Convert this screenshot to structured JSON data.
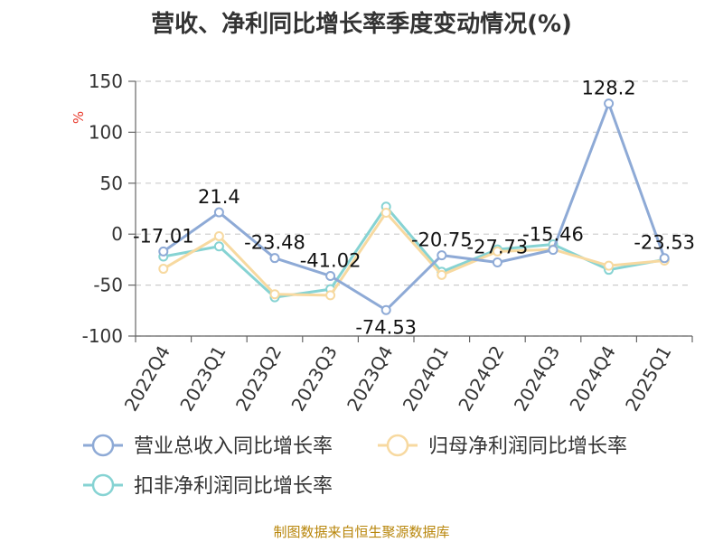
{
  "title": "营收、净利同比增长率季度变动情况(%)",
  "source": "制图数据来自恒生聚源数据库",
  "chart_data": {
    "type": "line",
    "title": "营收、净利同比增长率季度变动情况(%)",
    "ylabel": "%",
    "xlabel": "",
    "categories": [
      "2022Q4",
      "2023Q1",
      "2023Q2",
      "2023Q3",
      "2023Q4",
      "2024Q1",
      "2024Q2",
      "2024Q3",
      "2024Q4",
      "2025Q1"
    ],
    "ylim": [
      -100,
      150
    ],
    "yticks": [
      150,
      100,
      50,
      0,
      -50,
      -100
    ],
    "grid": "horizontal-dashed",
    "legend_position": "bottom",
    "series": [
      {
        "name": "营业总收入同比增长率",
        "color": "#8eaad6",
        "values": [
          -17.01,
          21.4,
          -23.48,
          -41.02,
          -74.53,
          -20.75,
          -27.73,
          -15.46,
          128.2,
          -23.53
        ],
        "labels": [
          "-17.01",
          "21.4",
          "-23.48",
          "-41.02",
          "-74.53",
          "-20.75",
          "-27.73",
          "-15.46",
          "128.2",
          "-23.53"
        ]
      },
      {
        "name": "归母净利润同比增长率",
        "color": "#f7d9a0",
        "values": [
          -34,
          -2,
          -59,
          -60,
          21,
          -40,
          -17,
          -15,
          -31,
          -26
        ]
      },
      {
        "name": "扣非净利润同比增长率",
        "color": "#86d3d3",
        "values": [
          -22,
          -12,
          -62,
          -54,
          27,
          -37,
          -15,
          -10,
          -35,
          -25
        ]
      }
    ]
  }
}
